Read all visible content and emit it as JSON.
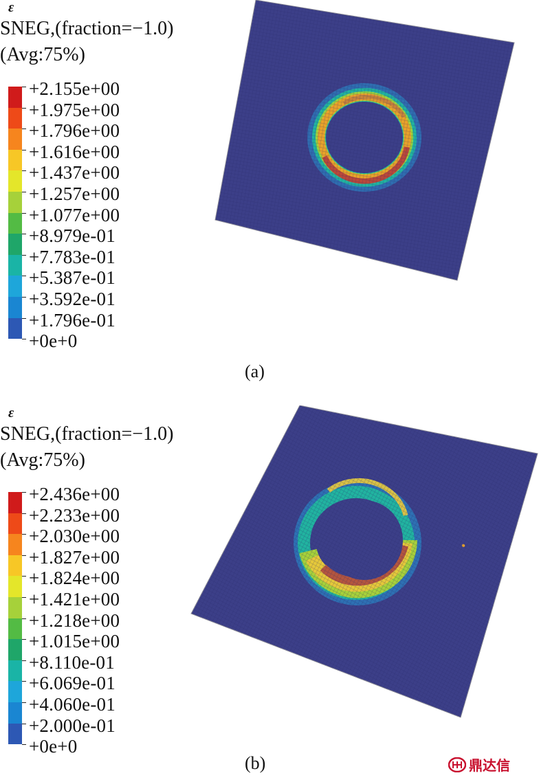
{
  "panels": [
    {
      "id": "a",
      "symbol": "ε",
      "variable": "SNEG,(fraction=−1.0)",
      "averaging": "(Avg:75%)",
      "legend_labels": [
        "+2.155e+00",
        "+1.975e+00",
        "+1.796e+00",
        "+1.616e+00",
        "+1.437e+00",
        "+1.257e+00",
        "+1.077e+00",
        "+8.979e-01",
        "+7.783e-01",
        "+5.387e-01",
        "+3.592e-01",
        "+1.796e-01",
        "+0e+0"
      ],
      "caption": "(a)"
    },
    {
      "id": "b",
      "symbol": "ε",
      "variable": "SNEG,(fraction=−1.0)",
      "averaging": "(Avg:75%)",
      "legend_labels": [
        "+2.436e+00",
        "+2.233e+00",
        "+2.030e+00",
        "+1.827e+00",
        "+1.824e+00",
        "+1.421e+00",
        "+1.218e+00",
        "+1.015e+00",
        "+8.110e-01",
        "+6.069e-01",
        "+4.060e-01",
        "+2.000e-01",
        "+0e+0"
      ],
      "caption": "(b)"
    }
  ],
  "legend_colors": [
    "#d01b1b",
    "#ee4a18",
    "#f6851e",
    "#f7c726",
    "#e4e62a",
    "#a6d13a",
    "#53bb44",
    "#1fa669",
    "#1ab4a6",
    "#1ea6da",
    "#1a86d2",
    "#2d58b4",
    "#36328d"
  ],
  "mesh_color": "#3c3f88",
  "watermark": "鼎达信"
}
